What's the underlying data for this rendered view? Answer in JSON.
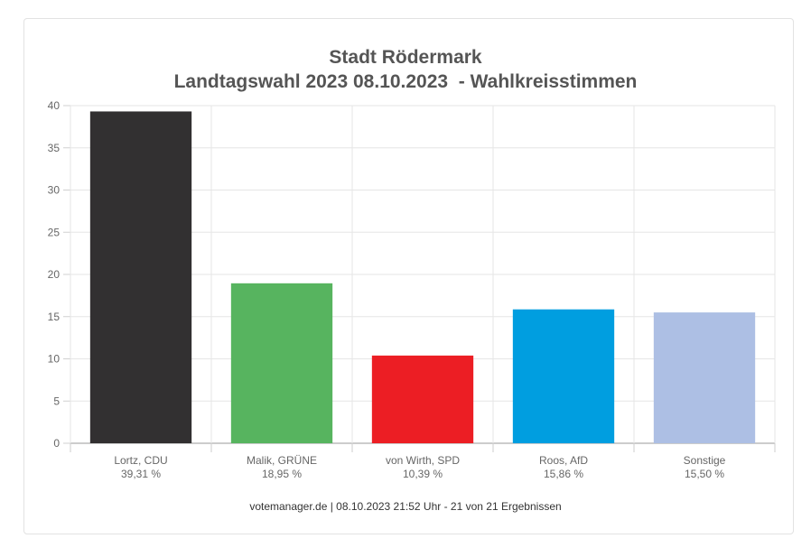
{
  "chart_data": {
    "type": "bar",
    "title": "Stadt Rödermark",
    "subtitle": "Landtagswahl 2023 08.10.2023  - Wahlkreisstimmen",
    "categories": [
      "Lortz, CDU",
      "Malik, GRÜNE",
      "von Wirth, SPD",
      "Roos, AfD",
      "Sonstige"
    ],
    "value_labels": [
      "39,31 %",
      "18,95 %",
      "10,39 %",
      "15,86 %",
      "15,50 %"
    ],
    "values": [
      39.31,
      18.95,
      10.39,
      15.86,
      15.5
    ],
    "colors": [
      "#323031",
      "#57b45f",
      "#ec1e24",
      "#009ee0",
      "#adbfe4"
    ],
    "ylim": [
      0,
      40
    ],
    "yticks": [
      "0",
      "5",
      "10",
      "15",
      "20",
      "25",
      "30",
      "35",
      "40"
    ],
    "ytick_values": [
      0,
      5,
      10,
      15,
      20,
      25,
      30,
      35,
      40
    ],
    "grid": true,
    "footer": "votemanager.de | 08.10.2023 21:52 Uhr - 21 von 21 Ergebnissen"
  }
}
